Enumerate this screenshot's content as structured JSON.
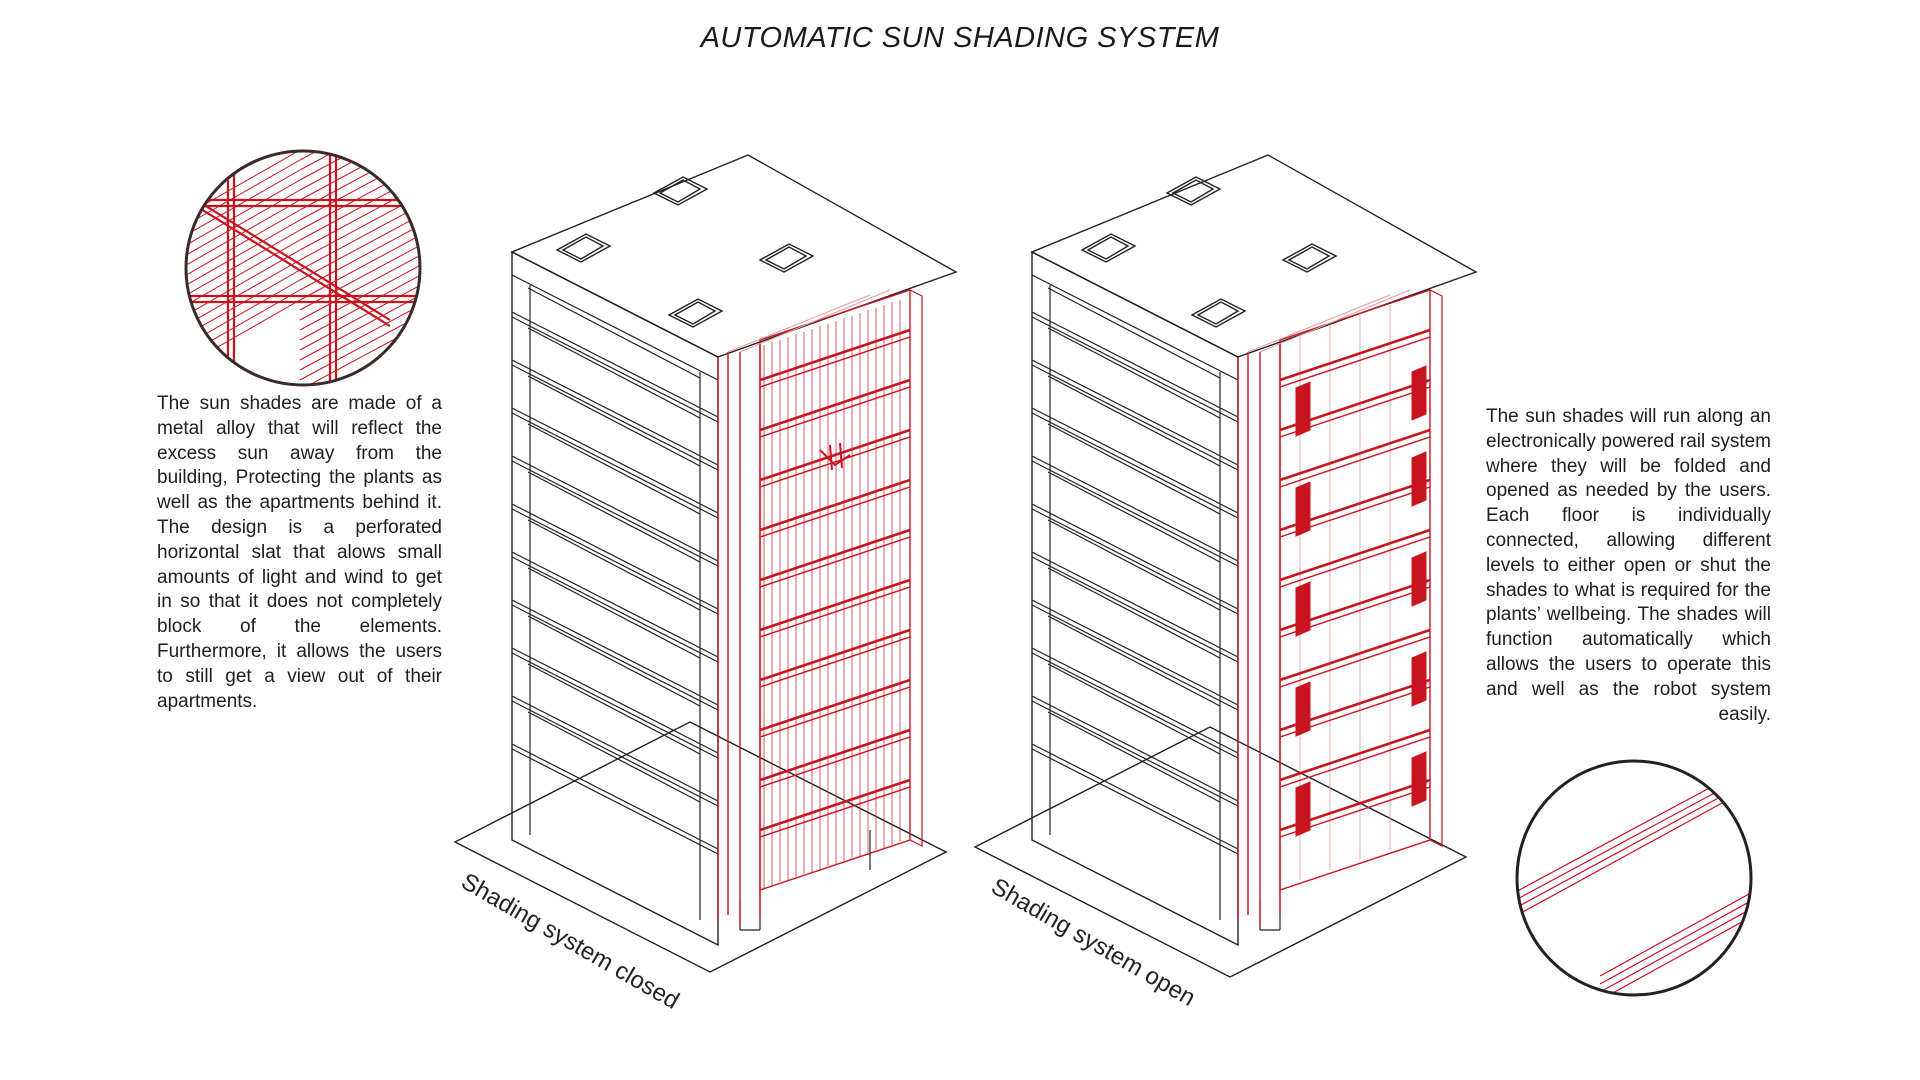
{
  "title": "AUTOMATIC SUN SHADING SYSTEM",
  "left_description": "The sun shades are made of a metal alloy that will reflect the excess sun away from the building, Protecting the plants as well as the apartments behind it. The design is a perforated horizontal slat that alows small amounts of light and wind to get in so that it does not completely block of the elements. Furthermore, it allows the users to still get a view out of their apartments.",
  "right_description": "The sun shades will run along an electronically powered rail system where they will be folded and opened as needed by the users. Each floor is individually connected, allowing different levels to either open or shut the shades to what is required for the plants’ wellbeing. The shades will function automatically which allows the users to operate this and well as the robot system easily.",
  "caption_closed": "Shading system closed",
  "caption_open": "Shading system open",
  "colors": {
    "line": "#222222",
    "shade": "#c8141e",
    "shade_light": "#e79a9a"
  }
}
